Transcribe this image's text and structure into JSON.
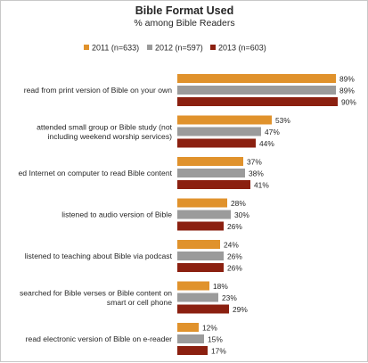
{
  "chart_data": {
    "type": "bar",
    "orientation": "horizontal",
    "title": "Bible Format Used",
    "subtitle": "% among Bible Readers",
    "value_suffix": "%",
    "xlim": [
      0,
      90
    ],
    "grid": false,
    "legend_position": "top",
    "categories": [
      [
        "read from print version of Bible on your own"
      ],
      [
        "attended small group or Bible study (not",
        "including weekend worship services)"
      ],
      [
        "ed Internet on computer to read Bible content"
      ],
      [
        "listened to audio version of Bible"
      ],
      [
        "listened to teaching about Bible via podcast"
      ],
      [
        "searched for Bible verses or Bible content on",
        "smart or cell phone"
      ],
      [
        "read electronic version of Bible on e-reader"
      ]
    ],
    "series": [
      {
        "name": "2011 (n=633)",
        "color": "#e0922c",
        "values": [
          89,
          53,
          37,
          28,
          24,
          18,
          12
        ]
      },
      {
        "name": "2012 (n=597)",
        "color": "#9b9b9b",
        "values": [
          89,
          47,
          38,
          30,
          26,
          23,
          15
        ]
      },
      {
        "name": "2013 (n=603)",
        "color": "#8b2010",
        "values": [
          90,
          44,
          41,
          26,
          26,
          29,
          17
        ]
      }
    ]
  }
}
